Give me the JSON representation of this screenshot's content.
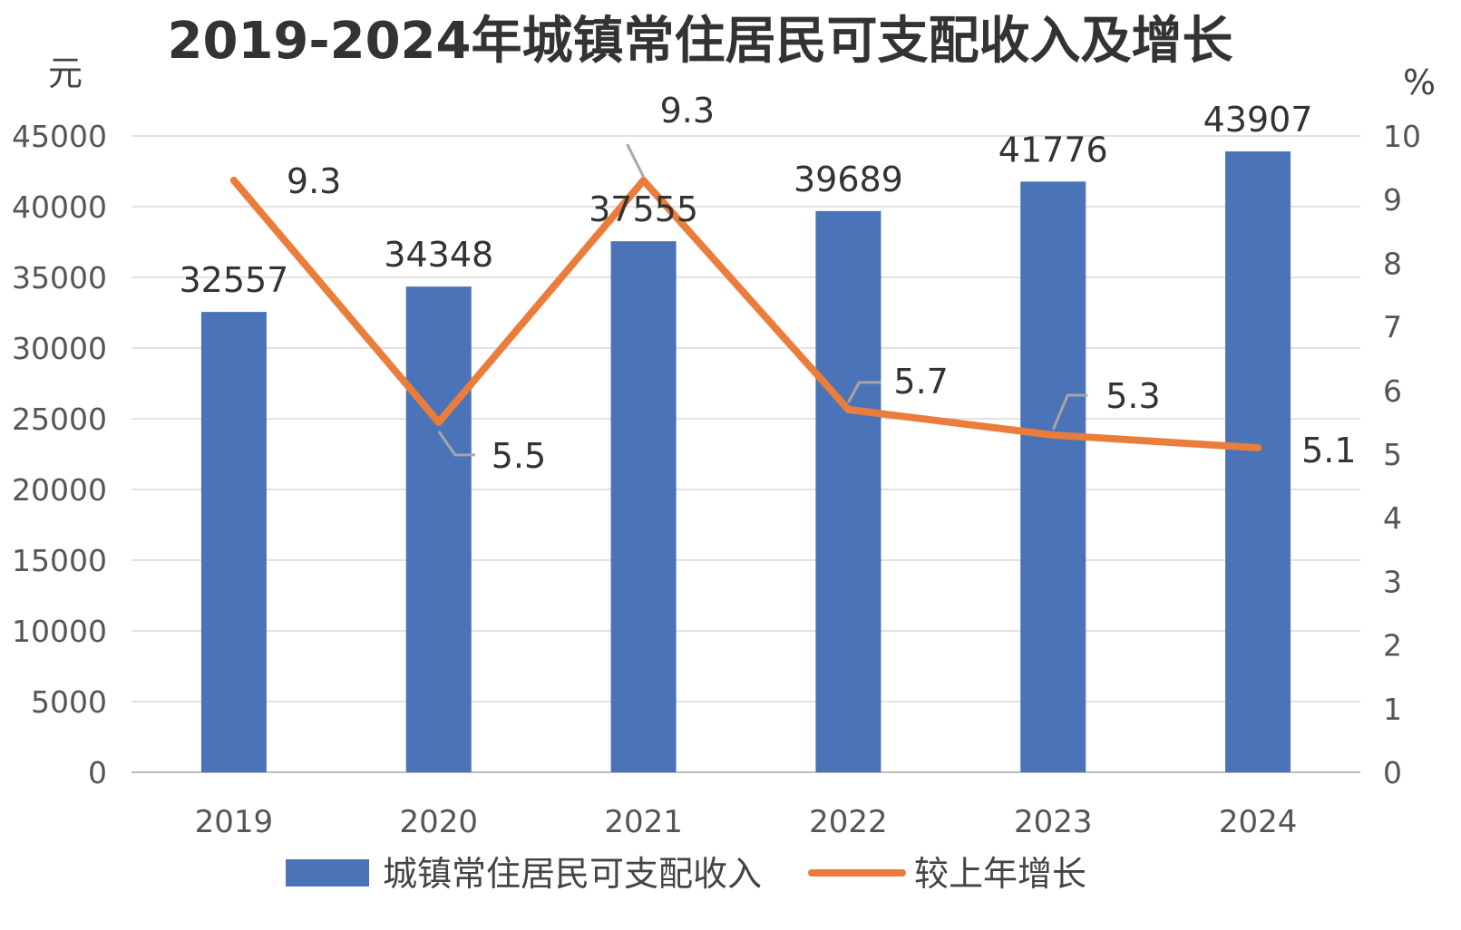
{
  "chart_data": {
    "type": "bar",
    "title": "2019-2024年城镇常住居民可支配收入及增长",
    "categories": [
      "2019",
      "2020",
      "2021",
      "2022",
      "2023",
      "2024"
    ],
    "series": [
      {
        "name": "城镇常住居民可支配收入",
        "type": "bar",
        "axis": "left",
        "color": "#4a73b8",
        "values": [
          32557,
          34348,
          37555,
          39689,
          41776,
          43907
        ]
      },
      {
        "name": "较上年增长",
        "type": "line",
        "axis": "right",
        "color": "#ea7d3b",
        "values": [
          9.3,
          5.5,
          9.3,
          5.7,
          5.3,
          5.1
        ]
      }
    ],
    "y_left": {
      "unit": "元",
      "min": 0,
      "max": 45000,
      "ticks": [
        "0",
        "5000",
        "10000",
        "15000",
        "20000",
        "25000",
        "30000",
        "35000",
        "40000",
        "45000"
      ]
    },
    "y_right": {
      "unit": "%",
      "min": 0,
      "max": 10,
      "ticks": [
        "0",
        "1",
        "2",
        "3",
        "4",
        "5",
        "6",
        "7",
        "8",
        "9",
        "10"
      ]
    },
    "grid": true,
    "legend_position": "bottom"
  }
}
